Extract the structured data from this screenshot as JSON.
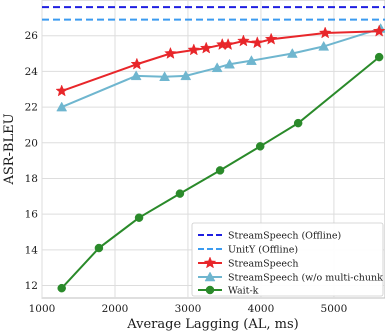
{
  "chart_data": {
    "type": "line",
    "xlabel": "Average Lagging (AL, ms)",
    "ylabel": "ASR-BLEU",
    "xlim": [
      1000,
      5700
    ],
    "ylim": [
      11.3,
      28.0
    ],
    "xticks": [
      1000,
      2000,
      3000,
      4000,
      5000
    ],
    "yticks": [
      12,
      14,
      16,
      18,
      20,
      22,
      24,
      26
    ],
    "grid": true,
    "legend_position": "bottom-right",
    "reference_lines": [
      {
        "name": "StreamSpeech (Offline)",
        "y": 27.6,
        "color": "#1f1fe0",
        "style": "dashed"
      },
      {
        "name": "UnitY (Offline)",
        "y": 26.9,
        "color": "#3b9bf0",
        "style": "dashed"
      }
    ],
    "series": [
      {
        "name": "StreamSpeech",
        "color": "#e8262a",
        "marker": "star",
        "x": [
          1270,
          2300,
          2760,
          3080,
          3250,
          3470,
          3550,
          3760,
          3950,
          4140,
          4880,
          5620
        ],
        "y": [
          22.9,
          24.4,
          25.0,
          25.2,
          25.3,
          25.5,
          25.5,
          25.7,
          25.6,
          25.8,
          26.15,
          26.25
        ]
      },
      {
        "name": "StreamSpeech (w/o multi-chunk training)",
        "color": "#6fb6cf",
        "marker": "triangle",
        "x": [
          1270,
          2290,
          2680,
          2970,
          3400,
          3570,
          3870,
          4430,
          4860,
          5640
        ],
        "y": [
          22.0,
          23.75,
          23.7,
          23.75,
          24.2,
          24.4,
          24.6,
          25.0,
          25.4,
          26.4
        ]
      },
      {
        "name": "Wait-k",
        "color": "#2a8a2a",
        "marker": "circle",
        "x": [
          1270,
          1780,
          2330,
          2890,
          3440,
          3990,
          4510,
          5620
        ],
        "y": [
          11.85,
          14.1,
          15.8,
          17.15,
          18.45,
          19.8,
          21.1,
          24.8
        ]
      }
    ]
  }
}
